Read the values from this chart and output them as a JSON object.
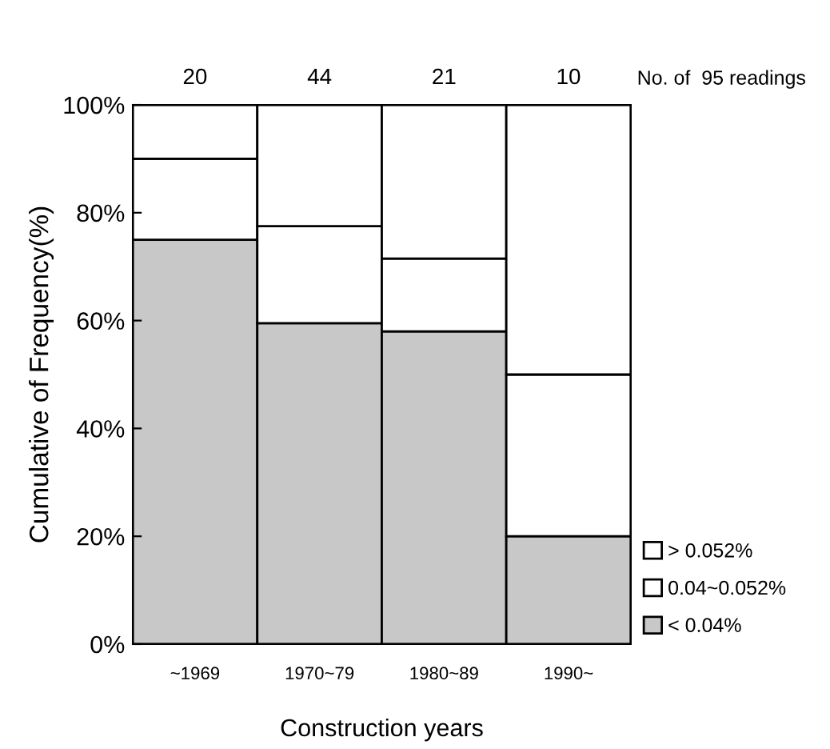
{
  "chart_data": {
    "type": "bar",
    "stacked": true,
    "xlabel": "Construction years",
    "ylabel": "Cumulative of Frequency(%)",
    "categories": [
      "~1969",
      "1970~79",
      "1980~89",
      "1990~"
    ],
    "series": [
      {
        "name": "< 0.04%",
        "color": "#c8c8c8",
        "values": [
          75,
          59.5,
          58,
          20
        ]
      },
      {
        "name": "0.04~0.052%",
        "color": "#ffffff",
        "values": [
          15,
          18,
          13.5,
          30
        ]
      },
      {
        "name": "> 0.052%",
        "color": "#ffffff",
        "values": [
          10,
          22.5,
          28.5,
          50
        ]
      }
    ],
    "ylim": [
      0,
      100
    ],
    "yticks": [
      {
        "value": 0,
        "label": "0%"
      },
      {
        "value": 20,
        "label": "20%"
      },
      {
        "value": 40,
        "label": "40%"
      },
      {
        "value": 60,
        "label": "60%"
      },
      {
        "value": 80,
        "label": "80%"
      },
      {
        "value": 100,
        "label": "100%"
      }
    ],
    "annotations": [
      "20",
      "44",
      "21",
      "10",
      "No. of  95 readings"
    ],
    "legend": "right",
    "grid": false
  }
}
